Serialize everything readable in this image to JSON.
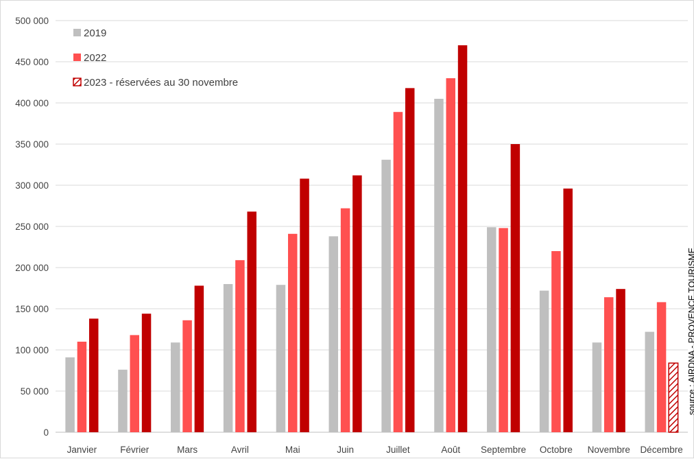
{
  "chart_data": {
    "type": "bar",
    "categories": [
      "Janvier",
      "Février",
      "Mars",
      "Avril",
      "Mai",
      "Juin",
      "Juillet",
      "Août",
      "Septembre",
      "Octobre",
      "Novembre",
      "Décembre"
    ],
    "series": [
      {
        "name": "2019",
        "color": "#bfbfbf",
        "values": [
          91000,
          76000,
          109000,
          180000,
          179000,
          238000,
          331000,
          405000,
          249000,
          172000,
          109000,
          122000
        ]
      },
      {
        "name": "2022",
        "color": "#ff5050",
        "values": [
          110000,
          118000,
          136000,
          209000,
          241000,
          272000,
          389000,
          430000,
          248000,
          220000,
          164000,
          158000
        ]
      },
      {
        "name": "2023 - réservées au 30 novembre",
        "color": "#c00000",
        "pattern_last": "hatched",
        "values": [
          138000,
          144000,
          178000,
          268000,
          308000,
          312000,
          418000,
          470000,
          350000,
          296000,
          174000,
          84000
        ]
      }
    ],
    "ylim": [
      0,
      500000
    ],
    "yticks": [
      0,
      50000,
      100000,
      150000,
      200000,
      250000,
      300000,
      350000,
      400000,
      450000,
      500000
    ],
    "ytick_labels": [
      "0",
      "50 000",
      "100 000",
      "150 000",
      "200 000",
      "250 000",
      "300 000",
      "350 000",
      "400 000",
      "450 000",
      "500 000"
    ],
    "grid": "horizontal",
    "legend_position": "top-left",
    "annotation": "source : AIRDNA - PROVENCE TOURISME"
  }
}
